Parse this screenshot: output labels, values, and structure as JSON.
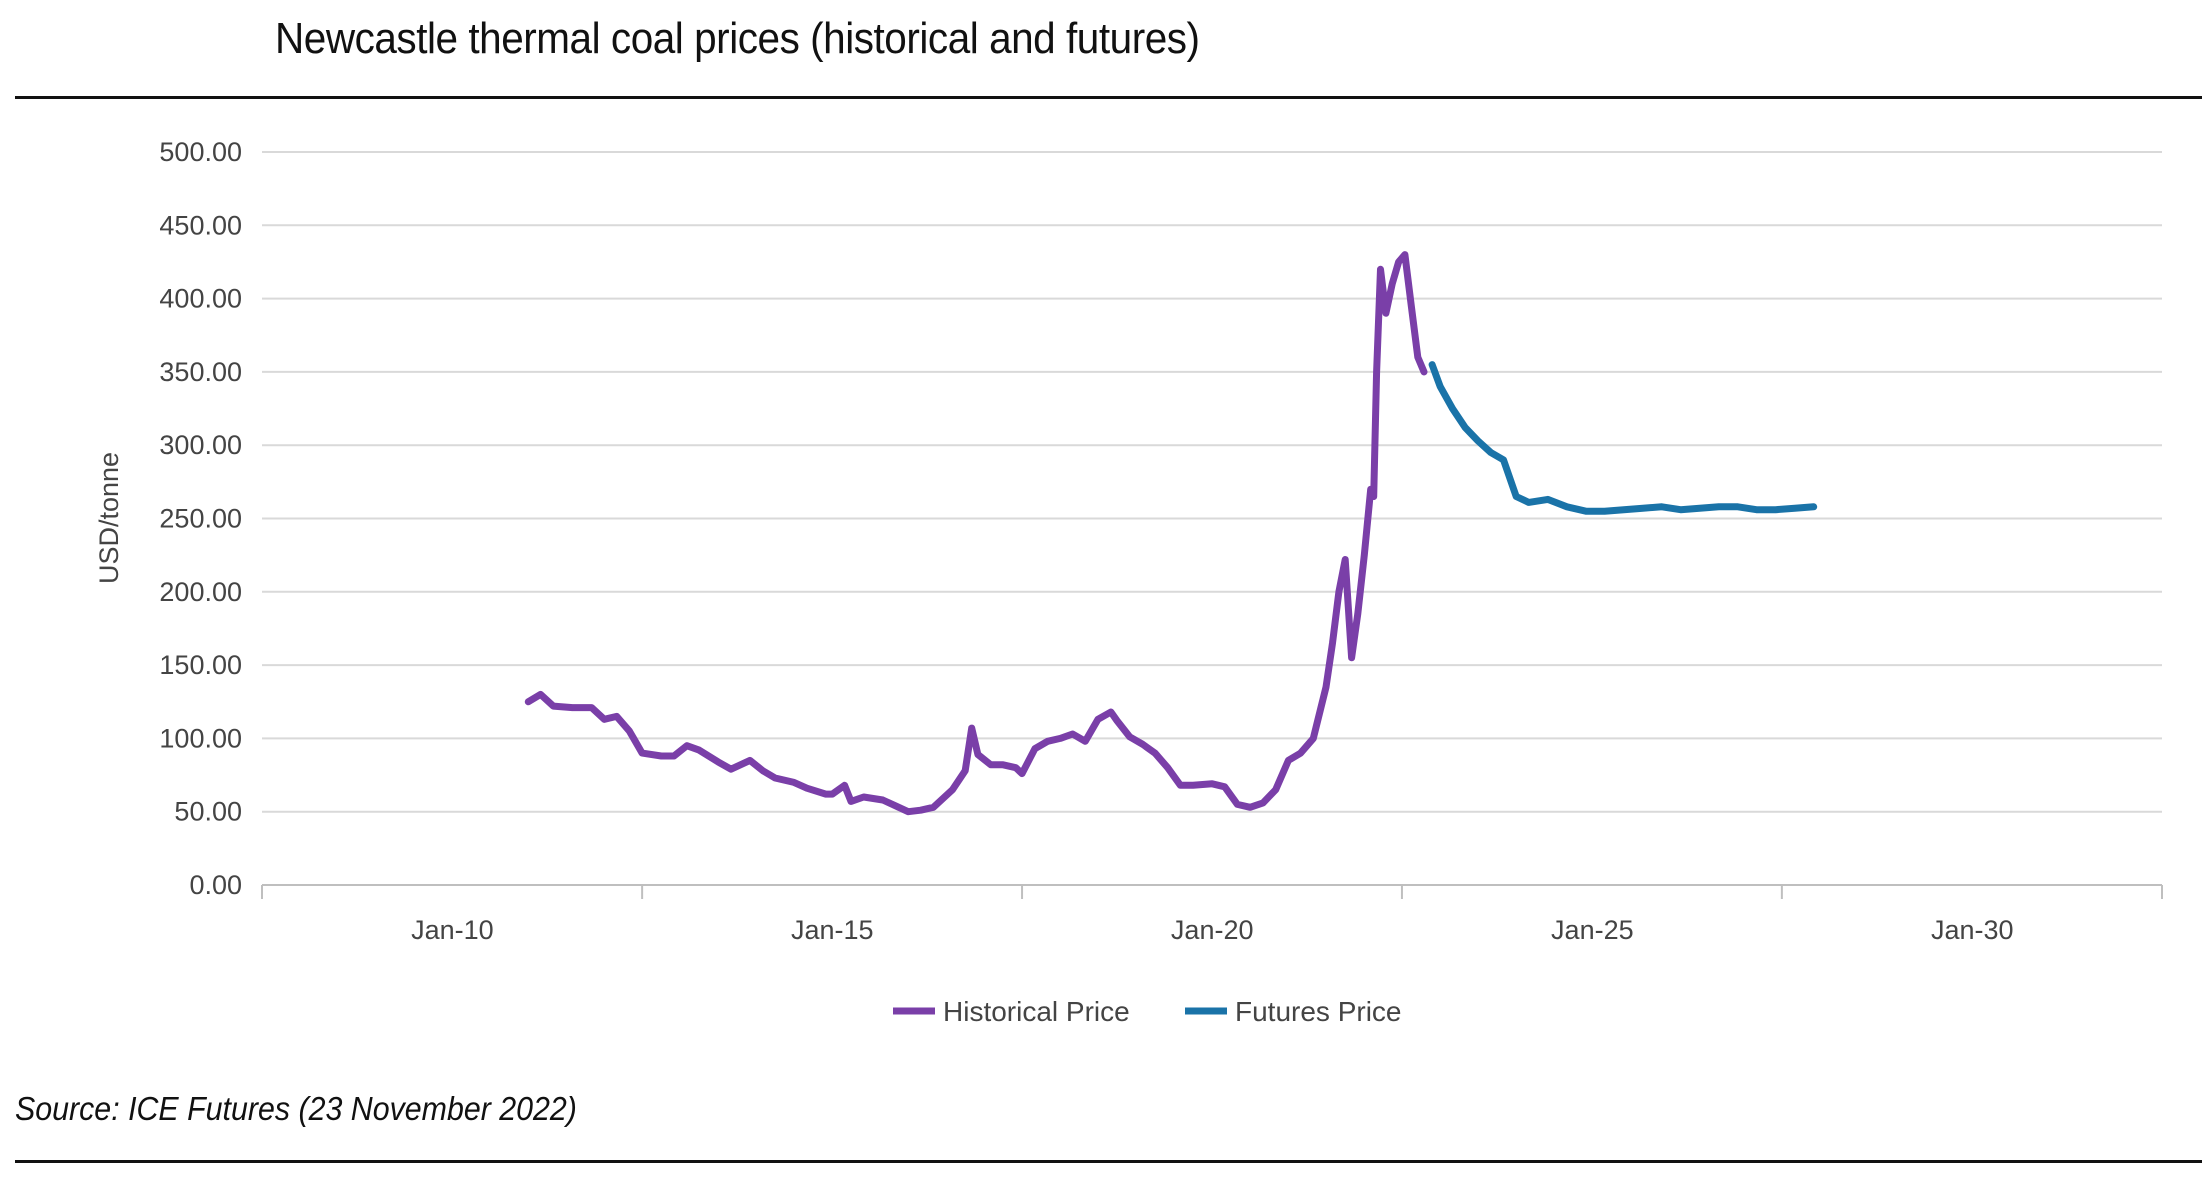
{
  "title": "Newcastle thermal coal prices (historical and futures)",
  "source": "Source: ICE Futures (23 November 2022)",
  "chart_data": {
    "type": "line",
    "title": "Newcastle thermal coal prices (historical and futures)",
    "xlabel": "",
    "ylabel": "USD/tonne",
    "x_range": [
      "2007-07-01",
      "2032-07-01"
    ],
    "ylim": [
      0,
      500
    ],
    "y_ticks": [
      "0.00",
      "50.00",
      "100.00",
      "150.00",
      "200.00",
      "250.00",
      "300.00",
      "350.00",
      "400.00",
      "450.00",
      "500.00"
    ],
    "x_ticks": [
      {
        "label": "Jan-10",
        "date": "2010-01-01"
      },
      {
        "label": "Jan-15",
        "date": "2015-01-01"
      },
      {
        "label": "Jan-20",
        "date": "2020-01-01"
      },
      {
        "label": "Jan-25",
        "date": "2025-01-01"
      },
      {
        "label": "Jan-30",
        "date": "2030-01-01"
      }
    ],
    "grid": true,
    "legend_position": "bottom",
    "series": [
      {
        "name": "Historical Price",
        "color": "#7a3fa8",
        "points": [
          [
            "2011-01-01",
            125
          ],
          [
            "2011-03-01",
            130
          ],
          [
            "2011-05-01",
            122
          ],
          [
            "2011-08-01",
            121
          ],
          [
            "2011-11-01",
            121
          ],
          [
            "2012-01-01",
            113
          ],
          [
            "2012-03-01",
            115
          ],
          [
            "2012-05-01",
            105
          ],
          [
            "2012-07-01",
            90
          ],
          [
            "2012-10-01",
            88
          ],
          [
            "2012-12-01",
            88
          ],
          [
            "2013-02-01",
            95
          ],
          [
            "2013-04-01",
            92
          ],
          [
            "2013-07-01",
            84
          ],
          [
            "2013-09-01",
            79
          ],
          [
            "2013-12-01",
            85
          ],
          [
            "2014-02-01",
            78
          ],
          [
            "2014-04-01",
            73
          ],
          [
            "2014-07-01",
            70
          ],
          [
            "2014-09-01",
            66
          ],
          [
            "2014-12-01",
            62
          ],
          [
            "2015-01-01",
            62
          ],
          [
            "2015-03-01",
            68
          ],
          [
            "2015-04-01",
            57
          ],
          [
            "2015-06-01",
            60
          ],
          [
            "2015-09-01",
            58
          ],
          [
            "2015-11-01",
            54
          ],
          [
            "2016-01-01",
            50
          ],
          [
            "2016-03-01",
            51
          ],
          [
            "2016-05-01",
            53
          ],
          [
            "2016-08-01",
            65
          ],
          [
            "2016-10-01",
            78
          ],
          [
            "2016-11-01",
            107
          ],
          [
            "2016-12-01",
            89
          ],
          [
            "2017-02-01",
            82
          ],
          [
            "2017-04-01",
            82
          ],
          [
            "2017-06-01",
            80
          ],
          [
            "2017-07-01",
            76
          ],
          [
            "2017-09-01",
            93
          ],
          [
            "2017-11-01",
            98
          ],
          [
            "2018-01-01",
            100
          ],
          [
            "2018-03-01",
            103
          ],
          [
            "2018-05-01",
            98
          ],
          [
            "2018-07-01",
            113
          ],
          [
            "2018-09-01",
            118
          ],
          [
            "2018-10-01",
            112
          ],
          [
            "2018-12-01",
            101
          ],
          [
            "2019-02-01",
            96
          ],
          [
            "2019-04-01",
            90
          ],
          [
            "2019-06-01",
            80
          ],
          [
            "2019-08-01",
            68
          ],
          [
            "2019-10-01",
            68
          ],
          [
            "2020-01-01",
            69
          ],
          [
            "2020-03-01",
            67
          ],
          [
            "2020-05-01",
            55
          ],
          [
            "2020-07-01",
            53
          ],
          [
            "2020-09-01",
            56
          ],
          [
            "2020-11-01",
            65
          ],
          [
            "2021-01-01",
            85
          ],
          [
            "2021-03-01",
            90
          ],
          [
            "2021-05-01",
            100
          ],
          [
            "2021-07-01",
            135
          ],
          [
            "2021-08-01",
            165
          ],
          [
            "2021-09-01",
            200
          ],
          [
            "2021-10-01",
            222
          ],
          [
            "2021-11-01",
            155
          ],
          [
            "2021-12-01",
            185
          ],
          [
            "2022-01-01",
            225
          ],
          [
            "2022-02-01",
            270
          ],
          [
            "2022-02-15",
            265
          ],
          [
            "2022-03-01",
            350
          ],
          [
            "2022-03-20",
            420
          ],
          [
            "2022-04-15",
            390
          ],
          [
            "2022-05-15",
            410
          ],
          [
            "2022-06-15",
            425
          ],
          [
            "2022-07-15",
            430
          ],
          [
            "2022-08-15",
            395
          ],
          [
            "2022-09-15",
            360
          ],
          [
            "2022-10-15",
            350
          ]
        ]
      },
      {
        "name": "Futures Price",
        "color": "#1a73a8",
        "points": [
          [
            "2022-11-23",
            355
          ],
          [
            "2023-01-01",
            340
          ],
          [
            "2023-03-01",
            325
          ],
          [
            "2023-05-01",
            312
          ],
          [
            "2023-07-01",
            303
          ],
          [
            "2023-09-01",
            295
          ],
          [
            "2023-11-01",
            290
          ],
          [
            "2024-01-01",
            265
          ],
          [
            "2024-03-01",
            261
          ],
          [
            "2024-06-01",
            263
          ],
          [
            "2024-09-01",
            258
          ],
          [
            "2024-12-01",
            255
          ],
          [
            "2025-03-01",
            255
          ],
          [
            "2025-06-01",
            256
          ],
          [
            "2025-09-01",
            257
          ],
          [
            "2025-12-01",
            258
          ],
          [
            "2026-03-01",
            256
          ],
          [
            "2026-06-01",
            257
          ],
          [
            "2026-09-01",
            258
          ],
          [
            "2026-12-01",
            258
          ],
          [
            "2027-03-01",
            256
          ],
          [
            "2027-06-01",
            256
          ],
          [
            "2027-09-01",
            257
          ],
          [
            "2027-12-01",
            258
          ]
        ]
      }
    ]
  }
}
